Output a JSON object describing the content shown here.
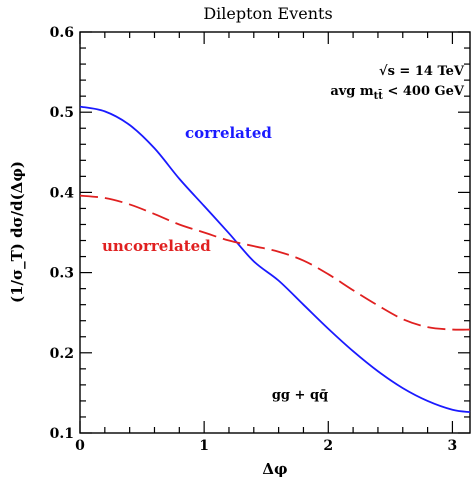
{
  "chart_data": {
    "type": "line",
    "title": "Dilepton Events",
    "xlabel": "Δφ",
    "ylabel": "(1/σ_T)  dσ/d(Δφ)",
    "xlim": [
      0,
      3.14159
    ],
    "ylim": [
      0.1,
      0.6
    ],
    "x_ticks": [
      0,
      1,
      2,
      3
    ],
    "y_ticks": [
      0.1,
      0.2,
      0.3,
      0.4,
      0.5,
      0.6
    ],
    "x_tick_labels": [
      "0",
      "1",
      "2",
      "3"
    ],
    "y_tick_labels": [
      "0.1",
      "0.2",
      "0.3",
      "0.4",
      "0.5",
      "0.6"
    ],
    "grid": false,
    "annotations": {
      "energy": "√s = 14 TeV",
      "mass_cut_prefix": "avg m",
      "mass_cut_sub": "tt̄",
      "mass_cut_suffix": " < 400 GeV",
      "process": "gg + qq̄"
    },
    "series": [
      {
        "name": "correlated",
        "color": "#1a1aff",
        "style": "solid",
        "x": [
          0,
          0.2,
          0.4,
          0.6,
          0.8,
          1.0,
          1.2,
          1.4,
          1.6,
          1.8,
          2.0,
          2.2,
          2.4,
          2.6,
          2.8,
          3.0,
          3.1416
        ],
        "y": [
          0.507,
          0.501,
          0.484,
          0.455,
          0.417,
          0.383,
          0.349,
          0.314,
          0.29,
          0.26,
          0.23,
          0.202,
          0.177,
          0.156,
          0.14,
          0.129,
          0.126
        ]
      },
      {
        "name": "uncorrelated",
        "color": "#e02020",
        "style": "dashed",
        "x": [
          0,
          0.2,
          0.4,
          0.6,
          0.8,
          1.0,
          1.2,
          1.4,
          1.6,
          1.8,
          2.0,
          2.2,
          2.4,
          2.6,
          2.8,
          3.0,
          3.1416
        ],
        "y": [
          0.396,
          0.393,
          0.385,
          0.373,
          0.36,
          0.35,
          0.34,
          0.333,
          0.326,
          0.315,
          0.298,
          0.278,
          0.259,
          0.242,
          0.232,
          0.229,
          0.229
        ]
      }
    ]
  }
}
